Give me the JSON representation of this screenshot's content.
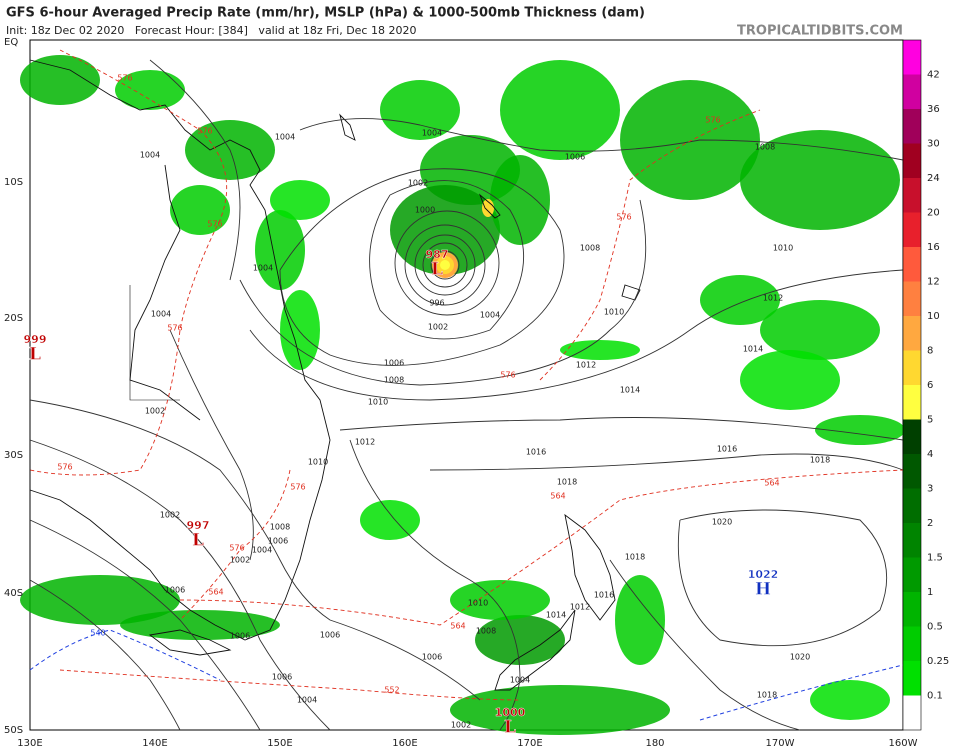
{
  "header": {
    "title": "GFS 6-hour Averaged Precip Rate (mm/hr), MSLP (hPa) & 1000-500mb Thickness (dam)",
    "subtitle": "Init: 18z Dec 02 2020   Forecast Hour: [384]   valid at 18z Fri, Dec 18 2020",
    "source": "TROPICALTIDBITS.COM"
  },
  "map": {
    "lat_labels": [
      "EQ",
      "10S",
      "20S",
      "30S",
      "40S",
      "50S"
    ],
    "lon_labels": [
      "130E",
      "140E",
      "150E",
      "160E",
      "170E",
      "180",
      "170W",
      "160W"
    ]
  },
  "colorbar": {
    "labels": [
      "0.1",
      "0.25",
      "0.5",
      "1",
      "1.5",
      "2",
      "3",
      "4",
      "5",
      "6",
      "8",
      "10",
      "12",
      "16",
      "20",
      "24",
      "30",
      "36",
      "42"
    ],
    "colors": [
      "#ffffff",
      "#00e000",
      "#00cc00",
      "#00b400",
      "#009a00",
      "#008400",
      "#006e00",
      "#005800",
      "#004000",
      "#ffff40",
      "#ffd830",
      "#ffa840",
      "#ff8040",
      "#ff5a3c",
      "#e8202c",
      "#c8102c",
      "#a00020",
      "#a0005a",
      "#d000a0",
      "#ff00e0"
    ]
  },
  "pressure_centers": [
    {
      "value": "999",
      "letter": "L",
      "color": "#c00000"
    },
    {
      "value": "997",
      "letter": "L",
      "color": "#c00000"
    },
    {
      "value": "987",
      "letter": "L",
      "color": "#c00000"
    },
    {
      "value": "1000",
      "letter": "L",
      "color": "#c00000"
    },
    {
      "value": "1022",
      "letter": "H",
      "color": "#1030c0"
    }
  ],
  "isobar_labels": [
    "1004",
    "1004",
    "1004",
    "1006",
    "1008",
    "1002",
    "1000",
    "1004",
    "1008",
    "1010",
    "1012",
    "1010",
    "1014",
    "1012",
    "1014",
    "1002",
    "996",
    "1004",
    "1006",
    "1008",
    "1010",
    "1012",
    "1016",
    "1016",
    "1018",
    "1018",
    "1020",
    "1018",
    "1016",
    "1010",
    "1008",
    "1006",
    "1004",
    "1020",
    "1018",
    "1002",
    "1010",
    "1008",
    "1006",
    "1004",
    "1002",
    "1004",
    "1002",
    "1006",
    "1006",
    "1006",
    "1006",
    "1004",
    "1002",
    "1012",
    "1014"
  ],
  "thickness_labels": [
    {
      "text": "576",
      "color": "#e03020"
    },
    {
      "text": "576",
      "color": "#e03020"
    },
    {
      "text": "576",
      "color": "#e03020"
    },
    {
      "text": "576",
      "color": "#e03020"
    },
    {
      "text": "576",
      "color": "#e03020"
    },
    {
      "text": "576",
      "color": "#e03020"
    },
    {
      "text": "576",
      "color": "#e03020"
    },
    {
      "text": "564",
      "color": "#e03020"
    },
    {
      "text": "564",
      "color": "#e03020"
    },
    {
      "text": "564",
      "color": "#e03020"
    },
    {
      "text": "564",
      "color": "#e03020"
    },
    {
      "text": "576",
      "color": "#e03020"
    },
    {
      "text": "576",
      "color": "#e03020"
    },
    {
      "text": "576",
      "color": "#e03020"
    },
    {
      "text": "552",
      "color": "#e03020"
    },
    {
      "text": "540",
      "color": "#2040e0"
    }
  ]
}
